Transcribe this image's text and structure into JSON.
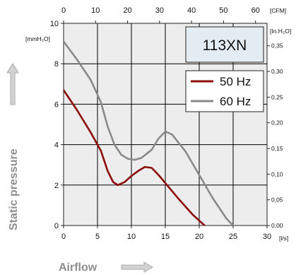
{
  "chart_data": {
    "type": "line",
    "model": "113XN",
    "xlabel": "Airflow",
    "ylabel": "Static pressure",
    "x_bottom": {
      "unit": "[l/s]",
      "range": [
        0,
        30
      ],
      "ticks": [
        "0",
        "5",
        "10",
        "15",
        "20",
        "25",
        "30"
      ]
    },
    "x_top": {
      "unit": "[CFM]",
      "range": [
        0,
        63.6
      ],
      "ticks": [
        "0",
        "10",
        "20",
        "30",
        "40",
        "50",
        "60"
      ]
    },
    "y_left": {
      "unit": "[mmH₂O]",
      "range": [
        0,
        10
      ],
      "ticks": [
        "0",
        "2",
        "4",
        "6",
        "8",
        "10"
      ]
    },
    "y_right": {
      "unit": "[In.H₂O]",
      "range": [
        0,
        0.3937
      ],
      "ticks": [
        "0,00",
        "0,05",
        "0,10",
        "0,15",
        "0,20",
        "0,25",
        "0,30",
        "0,35"
      ]
    },
    "grid": true,
    "legend_position": "top-right",
    "series": [
      {
        "name": "50 Hz",
        "color": "#8b0c0c",
        "x": [
          0,
          2,
          4,
          5.5,
          6.5,
          7.3,
          8,
          9,
          10,
          11,
          12,
          13,
          14,
          15,
          17,
          19,
          20.8
        ],
        "y": [
          6.7,
          5.7,
          4.6,
          3.7,
          2.7,
          2.15,
          2.0,
          2.15,
          2.45,
          2.7,
          2.9,
          2.85,
          2.5,
          2.1,
          1.3,
          0.55,
          0
        ]
      },
      {
        "name": "60 Hz",
        "color": "#8a8a8a",
        "x": [
          0,
          2,
          4,
          5.5,
          6.5,
          7.5,
          8.5,
          9.5,
          10.5,
          11.5,
          13,
          14,
          15,
          16,
          18,
          20,
          22,
          24,
          25
        ],
        "y": [
          9.1,
          8.2,
          7.2,
          6.1,
          4.9,
          4.0,
          3.5,
          3.3,
          3.25,
          3.35,
          3.75,
          4.3,
          4.65,
          4.5,
          3.65,
          2.5,
          1.35,
          0.35,
          0
        ]
      }
    ]
  }
}
